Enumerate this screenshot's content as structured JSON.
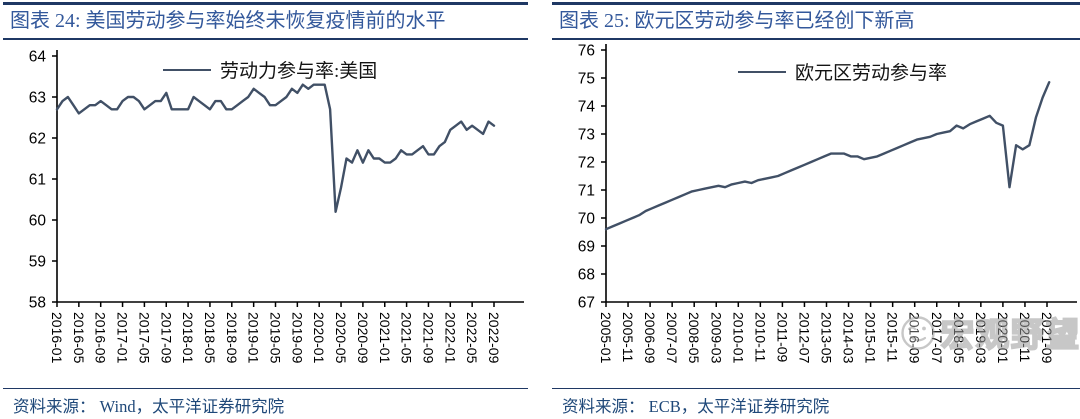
{
  "colors": {
    "line": "#415066",
    "title_text": "#33589B",
    "source_text": "#1F4879",
    "border": "#1F3864",
    "axis": "#000000",
    "watermark_gray": "#9A9A9A"
  },
  "watermark": {
    "icon": "smiley-face-icon",
    "text": "宏观野望"
  },
  "panels": [
    {
      "title": "图表 24: 美国劳动参与率始终未恢复疫情前的水平",
      "legend": "劳动力参与率:美国",
      "source": "资料来源： Wind，太平洋证券研究院",
      "chart_data": {
        "type": "line",
        "title": "图表 24: 美国劳动参与率始终未恢复疫情前的水平",
        "series_name": "劳动力参与率:美国",
        "xlabel": "",
        "ylabel": "",
        "ylim": [
          58,
          64
        ],
        "y_ticks": [
          64,
          63,
          62,
          61,
          60,
          59,
          58
        ],
        "grid": false,
        "legend_position": "top-center",
        "line_color": "#415066",
        "x_tick_labels": [
          "2016-01",
          "2016-05",
          "2016-09",
          "2017-01",
          "2017-05",
          "2017-09",
          "2018-01",
          "2018-05",
          "2018-09",
          "2019-01",
          "2019-05",
          "2019-09",
          "2020-01",
          "2020-05",
          "2020-09",
          "2021-01",
          "2021-05",
          "2021-09",
          "2022-01",
          "2022-05",
          "2022-09"
        ],
        "tick_month_step": 4,
        "point_month_step": 1,
        "values": [
          62.7,
          62.9,
          63.0,
          62.8,
          62.6,
          62.7,
          62.8,
          62.8,
          62.9,
          62.8,
          62.7,
          62.7,
          62.9,
          63.0,
          63.0,
          62.9,
          62.7,
          62.8,
          62.9,
          62.9,
          63.1,
          62.7,
          62.7,
          62.7,
          62.7,
          63.0,
          62.9,
          62.8,
          62.7,
          62.9,
          62.9,
          62.7,
          62.7,
          62.8,
          62.9,
          63.0,
          63.2,
          63.1,
          63.0,
          62.8,
          62.8,
          62.9,
          63.0,
          63.2,
          63.1,
          63.3,
          63.2,
          63.3,
          63.3,
          63.3,
          62.7,
          60.2,
          60.8,
          61.5,
          61.4,
          61.7,
          61.4,
          61.7,
          61.5,
          61.5,
          61.4,
          61.4,
          61.5,
          61.7,
          61.6,
          61.6,
          61.7,
          61.8,
          61.6,
          61.6,
          61.8,
          61.9,
          62.2,
          62.3,
          62.4,
          62.2,
          62.3,
          62.2,
          62.1,
          62.4,
          62.3
        ]
      }
    },
    {
      "title": "图表 25:  欧元区劳动参与率已经创下新高",
      "legend": "欧元区劳动参与率",
      "source": "资料来源： ECB，太平洋证券研究院",
      "chart_data": {
        "type": "line",
        "title": "图表 25: 欧元区劳动参与率已经创下新高",
        "series_name": "欧元区劳动参与率",
        "xlabel": "",
        "ylabel": "",
        "ylim": [
          67,
          76
        ],
        "y_ticks": [
          76,
          75,
          74,
          73,
          72,
          71,
          70,
          69,
          68,
          67
        ],
        "grid": false,
        "legend_position": "top-center",
        "line_color": "#415066",
        "x_tick_labels": [
          "2005-01",
          "2005-11",
          "2006-09",
          "2007-07",
          "2008-05",
          "2009-03",
          "2010-01",
          "2010-11",
          "2011-09",
          "2012-07",
          "2013-05",
          "2014-03",
          "2015-01",
          "2015-11",
          "2016-09",
          "2017-07",
          "2018-05",
          "2019-03",
          "2020-01",
          "2020-11",
          "2021-09"
        ],
        "tick_month_step": 10,
        "point_month_step": 3,
        "values": [
          69.6,
          69.7,
          69.8,
          69.9,
          70.0,
          70.1,
          70.25,
          70.35,
          70.45,
          70.55,
          70.65,
          70.75,
          70.85,
          70.95,
          71.0,
          71.05,
          71.1,
          71.15,
          71.1,
          71.2,
          71.25,
          71.3,
          71.25,
          71.35,
          71.4,
          71.45,
          71.5,
          71.6,
          71.7,
          71.8,
          71.9,
          72.0,
          72.1,
          72.2,
          72.3,
          72.3,
          72.3,
          72.2,
          72.2,
          72.1,
          72.15,
          72.2,
          72.3,
          72.4,
          72.5,
          72.6,
          72.7,
          72.8,
          72.85,
          72.9,
          73.0,
          73.05,
          73.1,
          73.3,
          73.2,
          73.35,
          73.45,
          73.55,
          73.65,
          73.4,
          73.3,
          71.1,
          72.6,
          72.45,
          72.6,
          73.6,
          74.3,
          74.85
        ]
      }
    }
  ]
}
